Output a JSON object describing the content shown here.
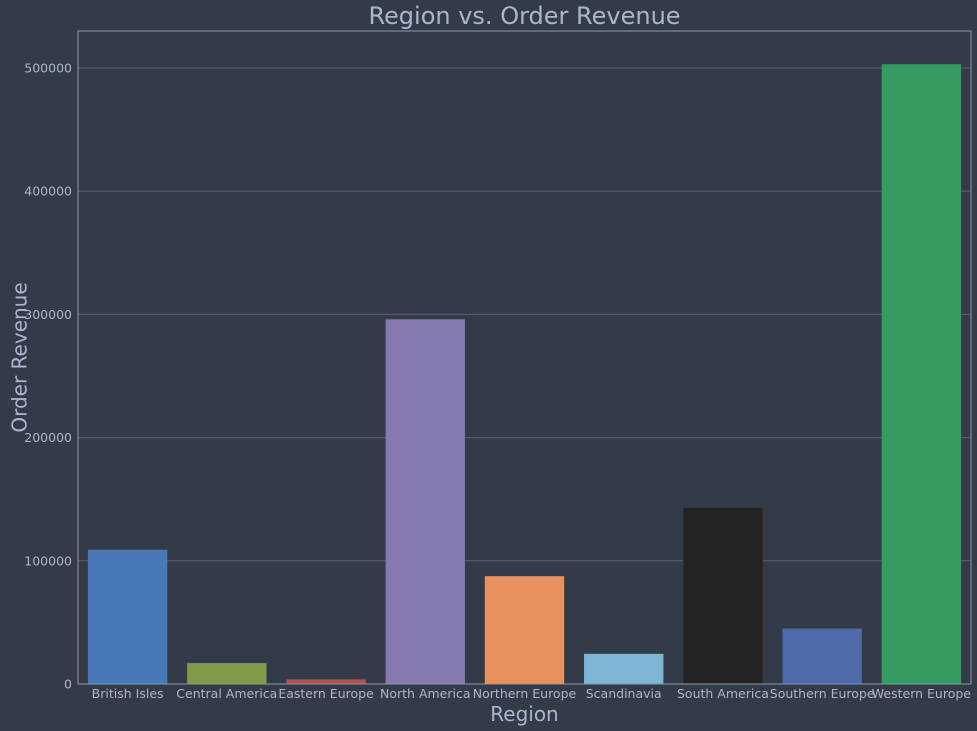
{
  "chart_data": {
    "type": "bar",
    "title": "Region vs. Order Revenue",
    "xlabel": "Region",
    "ylabel": "Order Revenue",
    "categories": [
      "British Isles",
      "Central America",
      "Eastern Europe",
      "North America",
      "Northern Europe",
      "Scandinavia",
      "South America",
      "Southern Europe",
      "Western Europe"
    ],
    "values": [
      109000,
      17000,
      3800,
      296000,
      87500,
      24500,
      143000,
      45000,
      503000
    ],
    "colors": [
      "#4878b8",
      "#7f9a48",
      "#b4524e",
      "#8679b0",
      "#e8935f",
      "#7fb6d6",
      "#232323",
      "#4f6aa8",
      "#359b61"
    ],
    "yticks": [
      0,
      100000,
      200000,
      300000,
      400000,
      500000
    ],
    "ylim": [
      0,
      530000
    ],
    "grid": true,
    "legend": "none"
  },
  "theme": {
    "background": "#343b48",
    "text": "#a9b7cc",
    "grid": "#56636e",
    "frame": "#8a98ad"
  }
}
